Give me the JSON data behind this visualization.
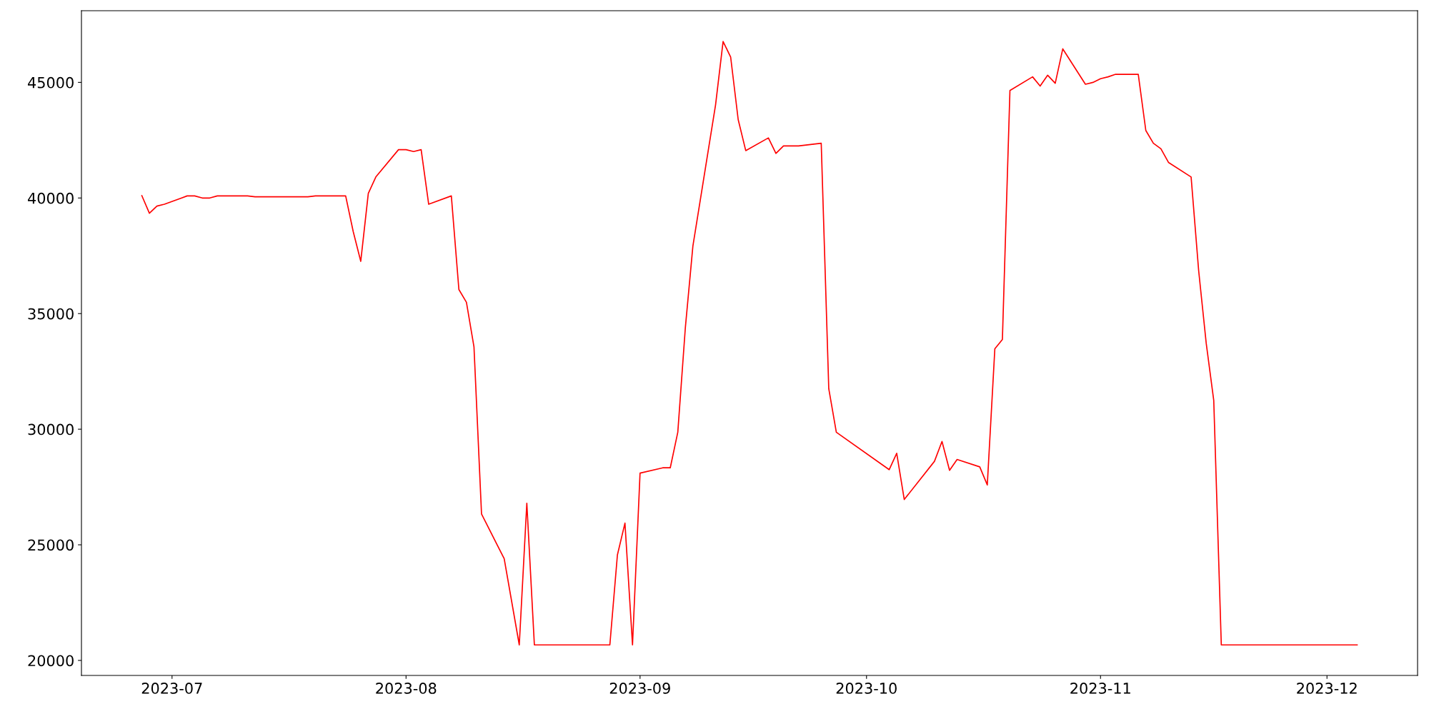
{
  "chart_data": {
    "type": "line",
    "x": [
      "2023-06-27",
      "2023-06-28",
      "2023-06-29",
      "2023-06-30",
      "2023-07-03",
      "2023-07-04",
      "2023-07-05",
      "2023-07-06",
      "2023-07-07",
      "2023-07-11",
      "2023-07-12",
      "2023-07-19",
      "2023-07-20",
      "2023-07-24",
      "2023-07-25",
      "2023-07-26",
      "2023-07-27",
      "2023-07-28",
      "2023-07-31",
      "2023-08-01",
      "2023-08-02",
      "2023-08-03",
      "2023-08-04",
      "2023-08-07",
      "2023-08-08",
      "2023-08-09",
      "2023-08-10",
      "2023-08-11",
      "2023-08-14",
      "2023-08-16",
      "2023-08-17",
      "2023-08-18",
      "2023-08-28",
      "2023-08-29",
      "2023-08-30",
      "2023-08-31",
      "2023-09-01",
      "2023-09-04",
      "2023-09-05",
      "2023-09-06",
      "2023-09-07",
      "2023-09-08",
      "2023-09-11",
      "2023-09-12",
      "2023-09-13",
      "2023-09-14",
      "2023-09-15",
      "2023-09-18",
      "2023-09-19",
      "2023-09-20",
      "2023-09-22",
      "2023-09-25",
      "2023-09-26",
      "2023-09-27",
      "2023-10-04",
      "2023-10-05",
      "2023-10-06",
      "2023-10-10",
      "2023-10-11",
      "2023-10-12",
      "2023-10-13",
      "2023-10-16",
      "2023-10-17",
      "2023-10-18",
      "2023-10-19",
      "2023-10-20",
      "2023-10-23",
      "2023-10-24",
      "2023-10-25",
      "2023-10-26",
      "2023-10-27",
      "2023-10-30",
      "2023-10-31",
      "2023-11-01",
      "2023-11-02",
      "2023-11-03",
      "2023-11-06",
      "2023-11-07",
      "2023-11-08",
      "2023-11-09",
      "2023-11-10",
      "2023-11-13",
      "2023-11-14",
      "2023-11-15",
      "2023-11-16",
      "2023-11-17",
      "2023-12-05"
    ],
    "series": [
      {
        "color": "#ff0000",
        "values": [
          40100,
          39340,
          39650,
          39730,
          40090,
          40090,
          40000,
          40000,
          40090,
          40090,
          40050,
          40050,
          40090,
          40090,
          38550,
          37260,
          40200,
          40910,
          42090,
          42090,
          42010,
          42090,
          39730,
          40090,
          36040,
          35490,
          33560,
          26330,
          24400,
          20670,
          26800,
          20670,
          20670,
          24560,
          25940,
          20670,
          28100,
          28330,
          28330,
          29870,
          34390,
          37920,
          44020,
          46770,
          46100,
          43390,
          42050,
          42600,
          41930,
          42250,
          42250,
          42370,
          31750,
          29870,
          28250,
          28960,
          26960,
          28610,
          29470,
          28220,
          28690,
          28370,
          27590,
          33480,
          33880,
          44650,
          45240,
          44840,
          45310,
          44960,
          46450,
          44920,
          45000,
          45160,
          45240,
          45350,
          45350,
          42920,
          42370,
          42130,
          41540,
          40910,
          36860,
          33720,
          31240,
          20670,
          20670
        ]
      }
    ],
    "xlim": [
      "2023-06-19",
      "2023-12-13"
    ],
    "xticks": [
      "2023-07",
      "2023-08",
      "2023-09",
      "2023-10",
      "2023-11",
      "2023-12"
    ],
    "ylim": [
      19350,
      48100
    ],
    "yticks": [
      20000,
      25000,
      30000,
      35000,
      40000,
      45000
    ],
    "grid": false,
    "legend": false,
    "marker": "none",
    "line_style": "solid"
  }
}
